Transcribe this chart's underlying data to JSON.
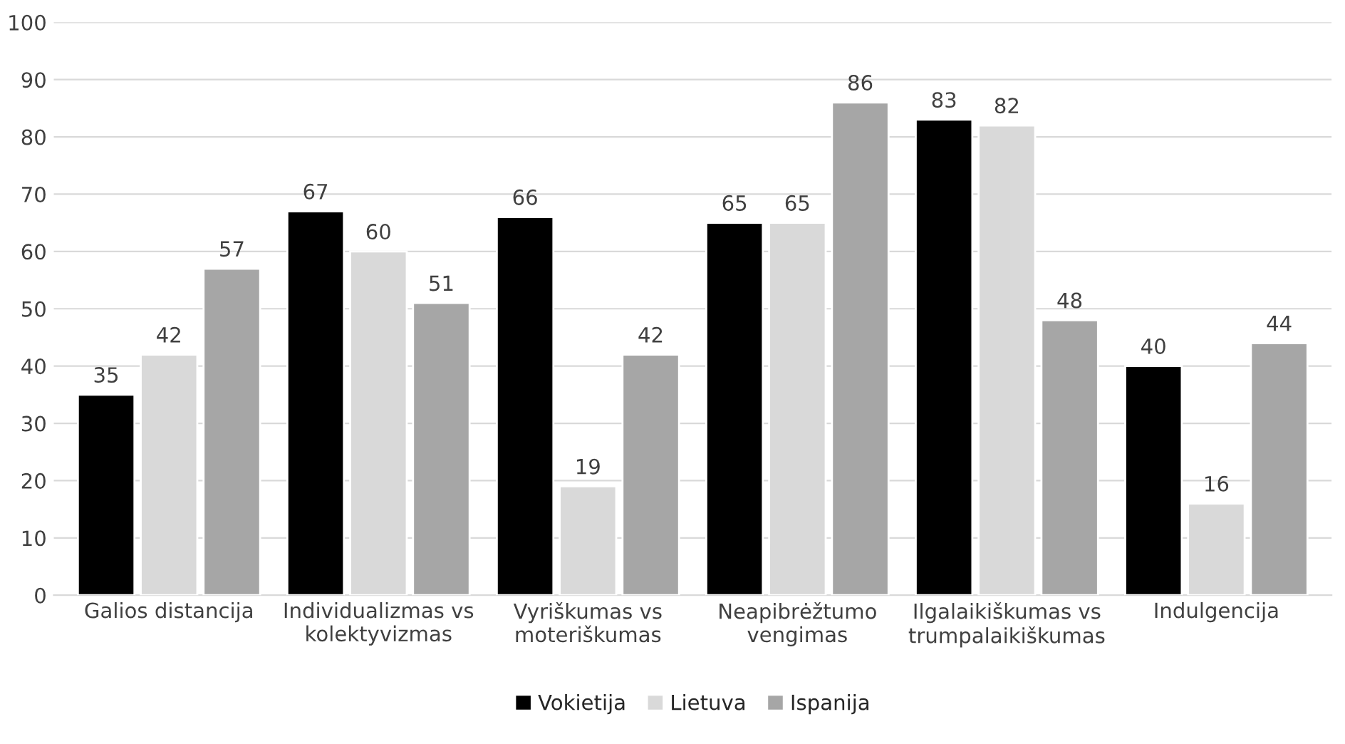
{
  "chart_data": {
    "type": "bar",
    "categories": [
      "Galios distancija",
      "Individualizmas vs\nkolektyvizmas",
      "Vyriškumas vs\nmoteriškumas",
      "Neapibrėžtumo\nvengimas",
      "Ilgalaikiškumas vs\ntrumpalaikiškumas",
      "Indulgencija"
    ],
    "series": [
      {
        "name": "Vokietija",
        "color": "#000000",
        "values": [
          35,
          67,
          66,
          65,
          83,
          40
        ]
      },
      {
        "name": "Lietuva",
        "color": "#d9d9d9",
        "values": [
          42,
          60,
          19,
          65,
          82,
          16
        ]
      },
      {
        "name": "Ispanija",
        "color": "#a6a6a6",
        "values": [
          57,
          51,
          42,
          86,
          48,
          44
        ]
      }
    ],
    "ylim": [
      0,
      100
    ],
    "yticks": [
      0,
      10,
      20,
      30,
      40,
      50,
      60,
      70,
      80,
      90,
      100
    ],
    "grid": "y",
    "legend": "bottom",
    "data_labels": true
  }
}
